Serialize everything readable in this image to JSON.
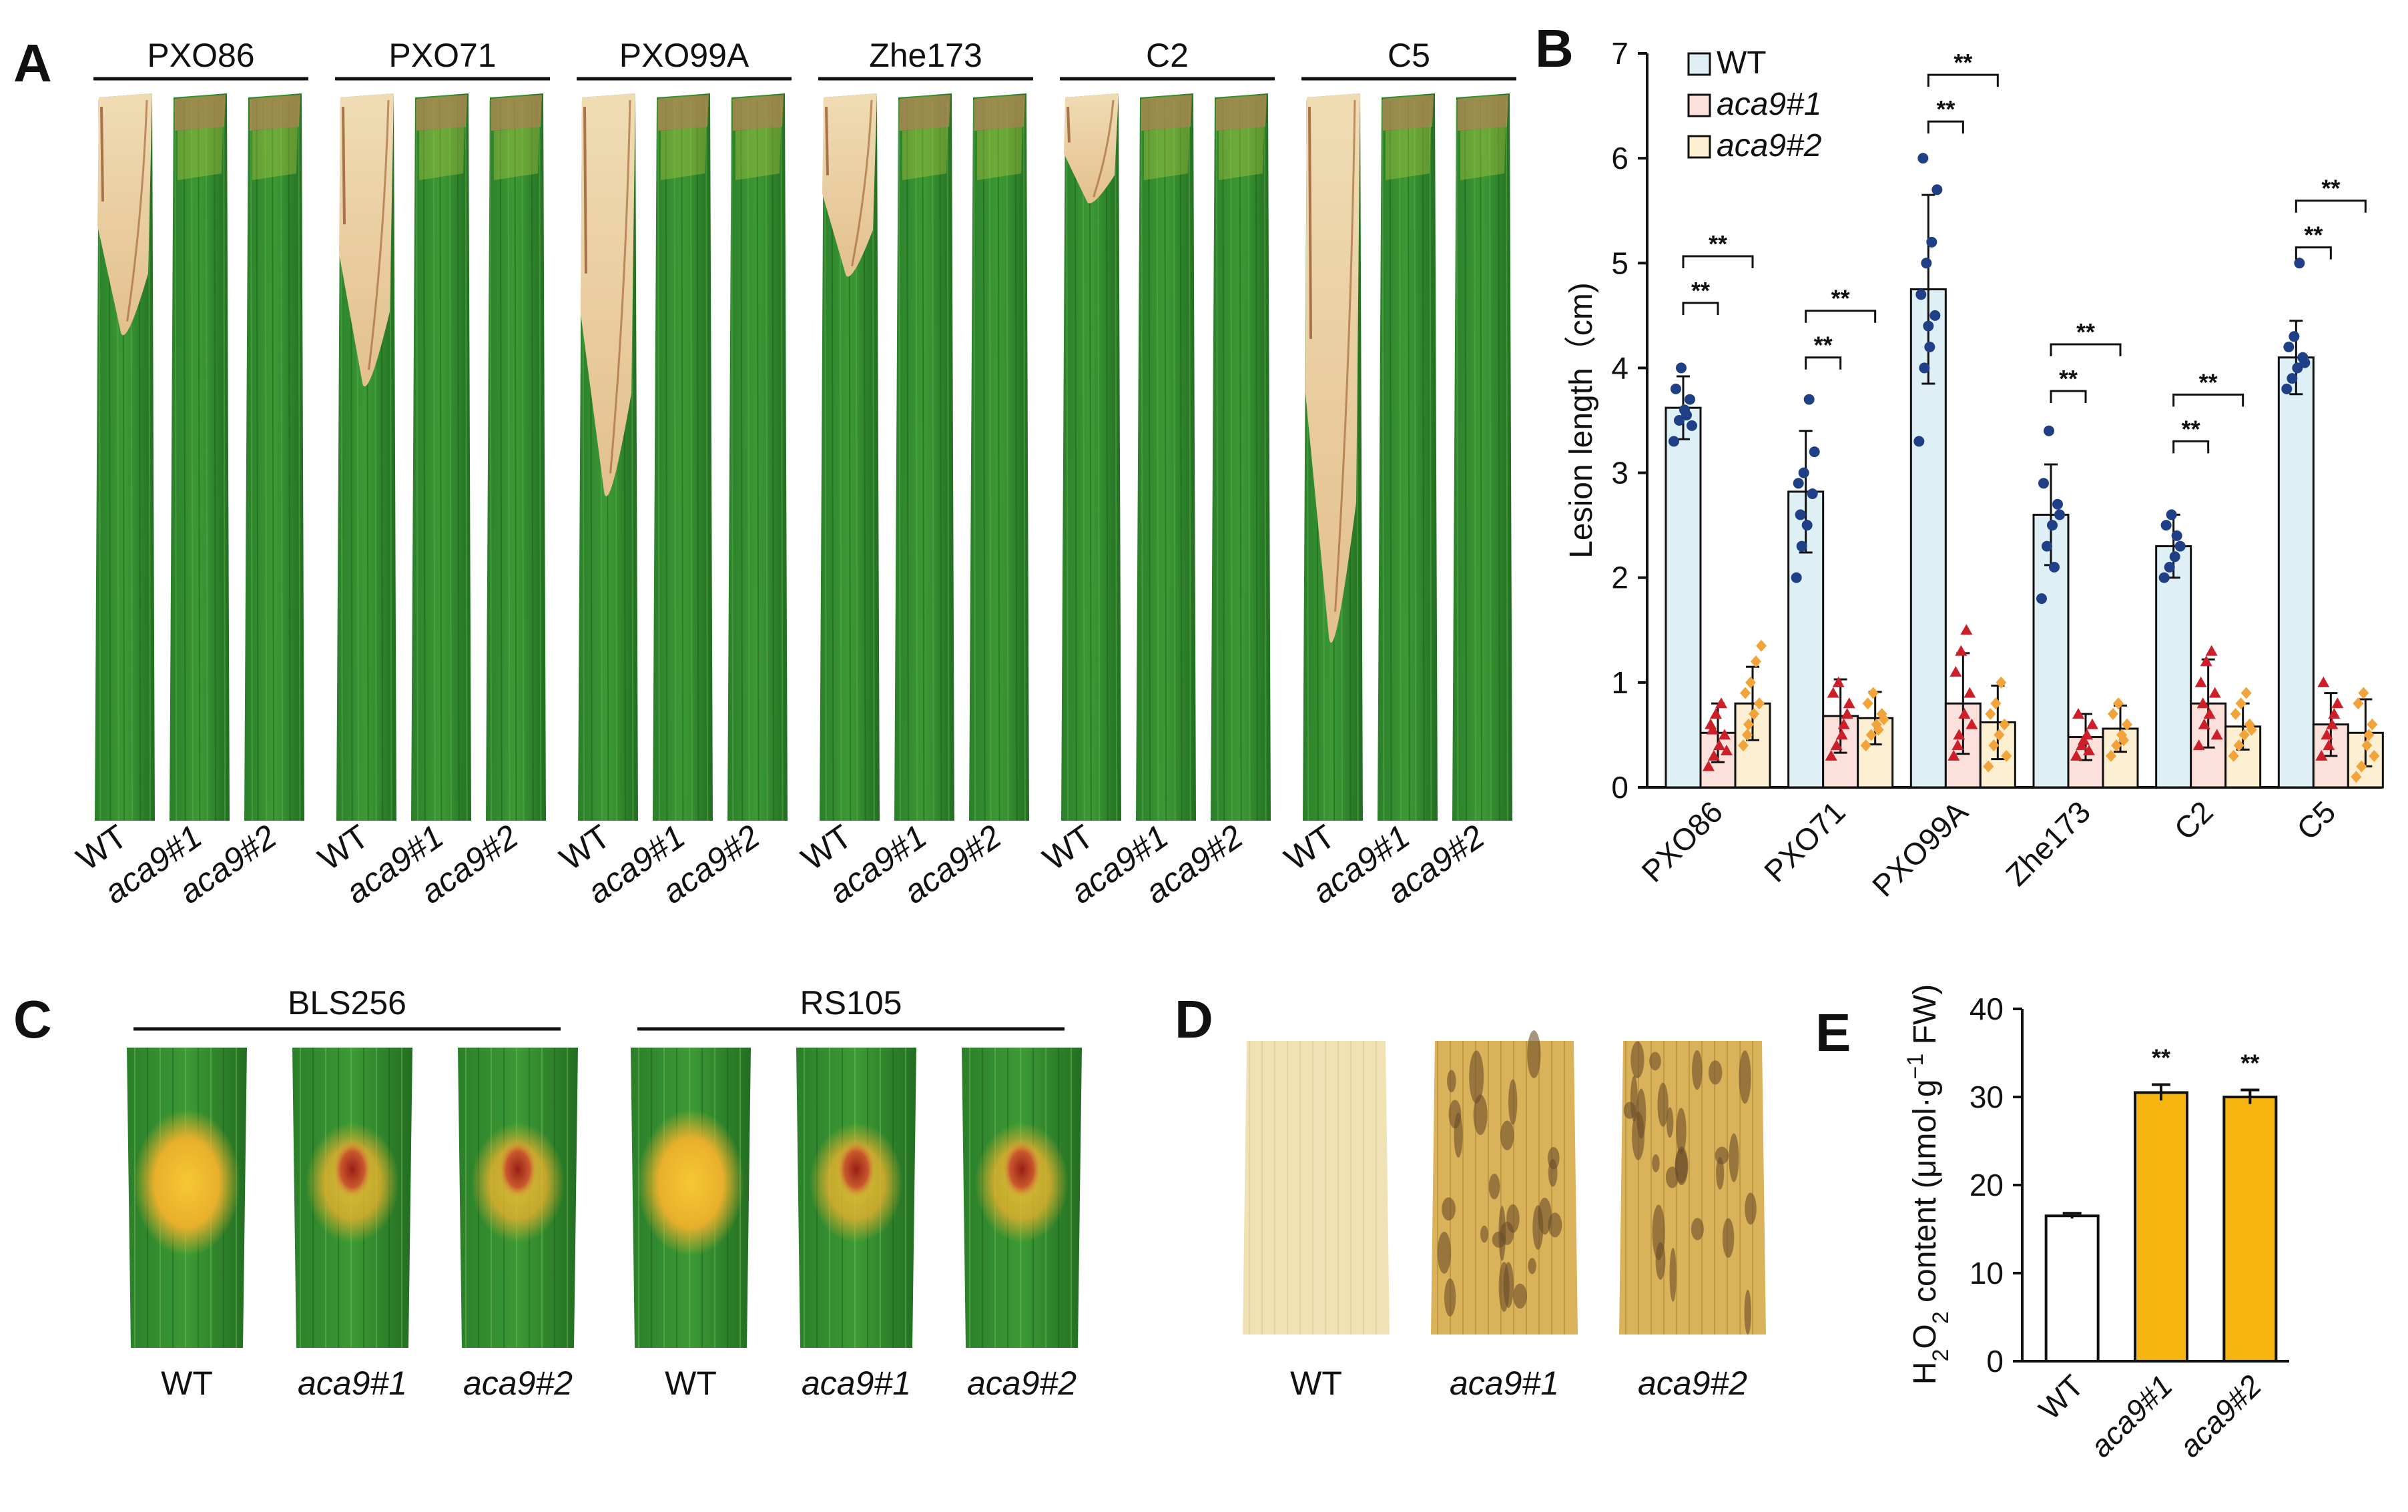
{
  "panels": {
    "A": {
      "letter": "A",
      "strains": [
        "PXO86",
        "PXO71",
        "PXO99A",
        "Zhe173",
        "C2",
        "C5"
      ],
      "genotypes": [
        "WT",
        "aca9#1",
        "aca9#2"
      ]
    },
    "C": {
      "letter": "C",
      "groups": [
        "BLS256",
        "RS105"
      ],
      "genotypes": [
        "WT",
        "aca9#1",
        "aca9#2"
      ]
    },
    "D": {
      "letter": "D",
      "genotypes": [
        "WT",
        "aca9#1",
        "aca9#2"
      ]
    }
  },
  "colors": {
    "wt_fill": "#deeff5",
    "m1_fill": "#fbe0dc",
    "m2_fill": "#fcefd2",
    "wt_point": "#1f3f86",
    "m1_point": "#cc1f2a",
    "m2_point": "#f2a33a",
    "h2o2_bar": "#f7b512",
    "leaf_green": "#2f8a2c",
    "leaf_dark": "#1d6a1f",
    "lesion": "#e7c99a",
    "stain_light": "#f1e2b6",
    "stain_dark": "#6a4d2a"
  },
  "chart_data": [
    {
      "panel": "B",
      "letter": "B",
      "type": "bar",
      "title": "",
      "ylabel": "Lesion length（cm)",
      "xlabel": "",
      "ylim": [
        0,
        7
      ],
      "yticks": [
        "0",
        "1",
        "2",
        "3",
        "4",
        "5",
        "6",
        "7"
      ],
      "categories": [
        "PXO86",
        "PXO71",
        "PXO99A",
        "Zhe173",
        "C2",
        "C5"
      ],
      "legend": {
        "placement": "top-left",
        "entries": [
          "WT",
          "aca9#1",
          "aca9#2"
        ]
      },
      "series": [
        {
          "name": "WT",
          "values": [
            3.62,
            2.82,
            4.75,
            2.6,
            2.3,
            4.1
          ],
          "err": [
            0.3,
            0.58,
            0.9,
            0.48,
            0.3,
            0.35
          ]
        },
        {
          "name": "aca9#1",
          "values": [
            0.52,
            0.68,
            0.8,
            0.48,
            0.8,
            0.6
          ],
          "err": [
            0.28,
            0.35,
            0.48,
            0.22,
            0.42,
            0.3
          ]
        },
        {
          "name": "aca9#2",
          "values": [
            0.8,
            0.66,
            0.62,
            0.56,
            0.58,
            0.52
          ],
          "err": [
            0.35,
            0.25,
            0.35,
            0.22,
            0.22,
            0.32
          ]
        }
      ],
      "points": {
        "WT": [
          [
            3.3,
            3.5,
            3.6,
            3.7,
            3.8,
            4.0,
            3.55,
            3.45
          ],
          [
            2.0,
            2.3,
            2.5,
            2.8,
            2.9,
            3.0,
            3.7,
            3.2,
            2.6
          ],
          [
            3.3,
            4.0,
            4.2,
            4.5,
            4.7,
            5.0,
            5.2,
            5.7,
            6.0,
            4.4
          ],
          [
            1.8,
            2.3,
            2.5,
            2.7,
            2.9,
            3.4,
            2.1,
            2.6
          ],
          [
            2.0,
            2.1,
            2.2,
            2.3,
            2.5,
            2.6,
            2.4
          ],
          [
            3.8,
            3.9,
            4.0,
            4.1,
            4.2,
            4.3,
            5.0,
            4.05
          ]
        ],
        "aca9#1": [
          [
            0.2,
            0.3,
            0.4,
            0.5,
            0.6,
            0.7,
            0.8,
            0.35,
            0.55
          ],
          [
            0.3,
            0.4,
            0.5,
            0.7,
            0.9,
            1.0,
            0.6,
            0.8
          ],
          [
            0.3,
            0.5,
            0.7,
            0.9,
            1.1,
            1.3,
            1.5,
            0.6,
            0.4
          ],
          [
            0.3,
            0.4,
            0.5,
            0.6,
            0.7,
            0.45,
            0.35
          ],
          [
            0.4,
            0.6,
            0.7,
            0.9,
            1.0,
            1.2,
            1.3,
            0.5,
            0.8
          ],
          [
            0.3,
            0.5,
            0.6,
            0.8,
            1.0,
            0.4,
            0.7
          ]
        ],
        "aca9#2": [
          [
            0.4,
            0.6,
            0.7,
            0.8,
            0.9,
            1.0,
            1.2,
            1.35,
            0.5
          ],
          [
            0.4,
            0.5,
            0.6,
            0.7,
            0.8,
            0.9,
            0.55,
            0.65
          ],
          [
            0.2,
            0.4,
            0.5,
            0.6,
            0.7,
            0.8,
            1.0,
            0.3
          ],
          [
            0.3,
            0.4,
            0.5,
            0.6,
            0.7,
            0.8,
            0.45
          ],
          [
            0.3,
            0.4,
            0.5,
            0.6,
            0.7,
            0.8,
            0.9,
            0.55
          ],
          [
            0.1,
            0.2,
            0.4,
            0.6,
            0.8,
            0.9,
            0.5,
            0.3
          ]
        ]
      },
      "significance": "**"
    },
    {
      "panel": "E",
      "letter": "E",
      "type": "bar",
      "title": "",
      "ylabel_parts": [
        "H",
        "2",
        "O",
        "2",
        " content (μmol·g",
        "−1",
        " FW)"
      ],
      "xlabel": "",
      "ylim": [
        0,
        40
      ],
      "yticks": [
        "0",
        "10",
        "20",
        "30",
        "40"
      ],
      "categories": [
        "WT",
        "aca9#1",
        "aca9#2"
      ],
      "values": [
        16.5,
        30.5,
        30.0
      ],
      "err": [
        0.3,
        0.9,
        0.8
      ],
      "significance": [
        "",
        "**",
        "**"
      ]
    }
  ]
}
